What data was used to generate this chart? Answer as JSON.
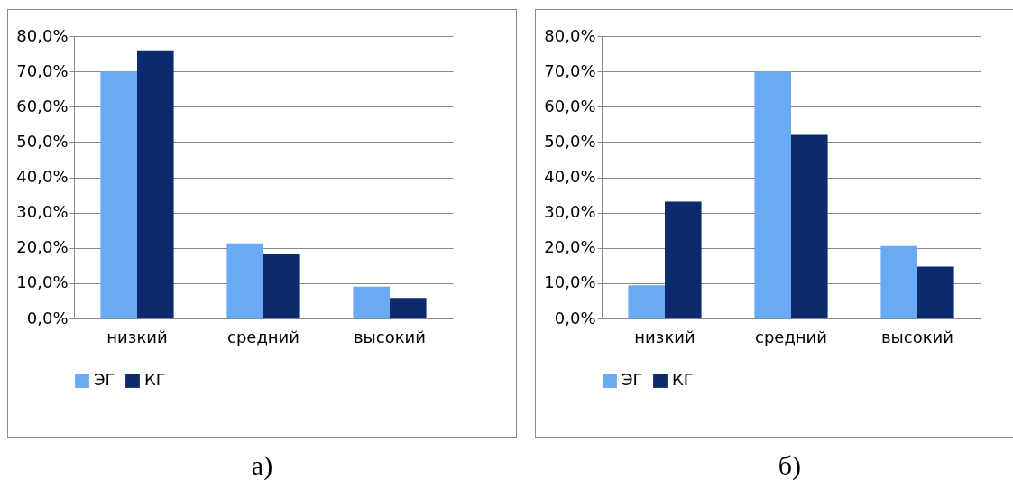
{
  "chart_data": [
    {
      "type": "bar",
      "title": "а)",
      "categories": [
        "низкий",
        "средний",
        "высокий"
      ],
      "series": [
        {
          "name": "ЭГ",
          "color": "#6aa9f4",
          "values": [
            70,
            21.3,
            9.0
          ]
        },
        {
          "name": "КГ",
          "color": "#0d2a6e",
          "values": [
            76,
            18.2,
            5.8
          ]
        }
      ],
      "ylim": [
        0,
        80
      ],
      "yticks": [
        {
          "value": 0,
          "label": "0,0%"
        },
        {
          "value": 10,
          "label": "10,0%"
        },
        {
          "value": 20,
          "label": "20,0%"
        },
        {
          "value": 30,
          "label": "30,0%"
        },
        {
          "value": 40,
          "label": "40,0%"
        },
        {
          "value": 50,
          "label": "50,0%"
        },
        {
          "value": 60,
          "label": "60,0%"
        },
        {
          "value": 70,
          "label": "70,0%"
        },
        {
          "value": 80,
          "label": "80,0%"
        }
      ],
      "grid": "y",
      "legend": "bottom"
    },
    {
      "type": "bar",
      "title": "б)",
      "categories": [
        "низкий",
        "средний",
        "высокий"
      ],
      "series": [
        {
          "name": "ЭГ",
          "color": "#6aa9f4",
          "values": [
            9.4,
            70,
            20.5
          ]
        },
        {
          "name": "КГ",
          "color": "#0d2a6e",
          "values": [
            33.1,
            52.0,
            14.7
          ]
        }
      ],
      "ylim": [
        0,
        80
      ],
      "yticks": [
        {
          "value": 0,
          "label": "0,0%"
        },
        {
          "value": 10,
          "label": "10,0%"
        },
        {
          "value": 20,
          "label": "20,0%"
        },
        {
          "value": 30,
          "label": "30,0%"
        },
        {
          "value": 40,
          "label": "40,0%"
        },
        {
          "value": 50,
          "label": "50,0%"
        },
        {
          "value": 60,
          "label": "60,0%"
        },
        {
          "value": 70,
          "label": "70,0%"
        },
        {
          "value": 80,
          "label": "80,0%"
        }
      ],
      "grid": "y",
      "legend": "bottom"
    }
  ]
}
